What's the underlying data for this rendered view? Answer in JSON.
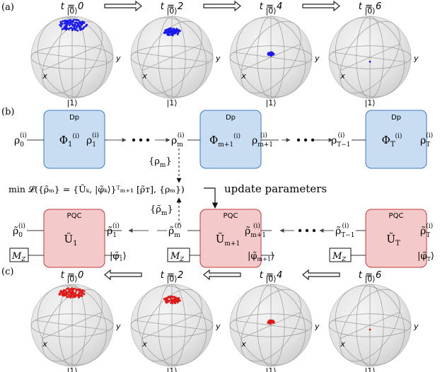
{
  "panel_a": {
    "label": "(a)",
    "spheres": [
      {
        "time_label": "t = 0",
        "top_ket": "|0⟩",
        "bottom_ket": "|1⟩",
        "x_label": "x",
        "y_label": "y",
        "spread": 0.95,
        "count": 120
      },
      {
        "time_label": "t = 2",
        "top_ket": "|0⟩",
        "bottom_ket": "|1⟩",
        "x_label": "x",
        "y_label": "y",
        "spread": 0.55,
        "count": 80
      },
      {
        "time_label": "t = 4",
        "top_ket": "|0⟩",
        "bottom_ket": "|1⟩",
        "x_label": "x",
        "y_label": "y",
        "spread": 0.2,
        "count": 40
      },
      {
        "time_label": "t = 6",
        "top_ket": "|0⟩",
        "bottom_ket": "|1⟩",
        "x_label": "x",
        "y_label": "y",
        "spread": 0.0,
        "count": 1
      }
    ],
    "point_color": "#1a1af0"
  },
  "panel_b": {
    "label": "(b)",
    "dp_blocks": [
      {
        "tag": "Dp",
        "op": "Φ",
        "sup": "(i)",
        "sub": "1"
      },
      {
        "tag": "Dp",
        "op": "Φ",
        "sup": "(i)",
        "sub": "m+1"
      },
      {
        "tag": "Dp",
        "op": "Φ",
        "sup": "(i)",
        "sub": "T"
      }
    ],
    "rho_top": [
      {
        "base": "ρ",
        "sup": "(i)",
        "sub": "0"
      },
      {
        "base": "ρ",
        "sup": "(i)",
        "sub": "1"
      },
      {
        "base": "ρ",
        "sup": "(i)",
        "sub": "m"
      },
      {
        "base": "ρ",
        "sup": "(i)",
        "sub": "m+1"
      },
      {
        "base": "ρ",
        "sup": "(i)",
        "sub": "T−1"
      },
      {
        "base": "ρ",
        "sup": "(i)",
        "sub": "T"
      }
    ],
    "rho_set": "{ρ",
    "rho_set_sub": "m",
    "rho_set_close": "}",
    "loss_expression": "min 𝓛({ρ̃ₘ} = {Ũₖ, |φ̃ₖ⟩}ᵀₘ₊₁ [ρ̃ᴛ], {ρₘ})",
    "update_label": "update parameters",
    "rho_tilde_set": "{ρ̃",
    "rho_tilde_set_sub": "m",
    "rho_tilde_set_close": "}",
    "pqc_blocks": [
      {
        "tag": "PQC",
        "op": "Ũ",
        "sub": "1"
      },
      {
        "tag": "PQC",
        "op": "Ũ",
        "sub": "m+1"
      },
      {
        "tag": "PQC",
        "op": "Ũ",
        "sub": "T"
      }
    ],
    "rho_bottom": [
      {
        "base": "ρ̃",
        "sup": "(i)",
        "sub": "0"
      },
      {
        "base": "ρ̃",
        "sup": "(i)",
        "sub": "1"
      },
      {
        "base": "ρ̃",
        "sup": "(i)",
        "sub": "m"
      },
      {
        "base": "ρ̃",
        "sup": "(i)",
        "sub": "m+1"
      },
      {
        "base": "ρ̃",
        "sup": "(i)",
        "sub": "T−1"
      },
      {
        "base": "ρ̃",
        "sup": "(i)",
        "sub": "T"
      }
    ],
    "measure_label": "M",
    "measure_sub": "Z",
    "ancilla_kets": [
      {
        "base": "|φ̃",
        "sub": "1",
        "close": "⟩"
      },
      {
        "base": "|φ̃",
        "sub": "m+1",
        "close": "⟩"
      },
      {
        "base": "|φ̃",
        "sub": "T",
        "close": "⟩"
      }
    ],
    "colors": {
      "dp_fill": "#c9ddf2",
      "dp_stroke": "#3a78c2",
      "pqc_fill": "#f4c9c9",
      "pqc_stroke": "#c23a3a"
    }
  },
  "panel_c": {
    "label": "(c)",
    "spheres": [
      {
        "time_label": "t = 0",
        "top_ket": "|0⟩",
        "bottom_ket": "|1⟩",
        "x_label": "x",
        "y_label": "y",
        "spread": 0.85,
        "count": 110
      },
      {
        "time_label": "t = 2",
        "top_ket": "|0⟩",
        "bottom_ket": "|1⟩",
        "x_label": "x",
        "y_label": "y",
        "spread": 0.55,
        "count": 80
      },
      {
        "time_label": "t = 4",
        "top_ket": "|0⟩",
        "bottom_ket": "|1⟩",
        "x_label": "x",
        "y_label": "y",
        "spread": 0.22,
        "count": 40
      },
      {
        "time_label": "t = 6",
        "top_ket": "|0⟩",
        "bottom_ket": "|1⟩",
        "x_label": "x",
        "y_label": "y",
        "spread": 0.0,
        "count": 1
      }
    ],
    "point_color": "#e01818"
  }
}
